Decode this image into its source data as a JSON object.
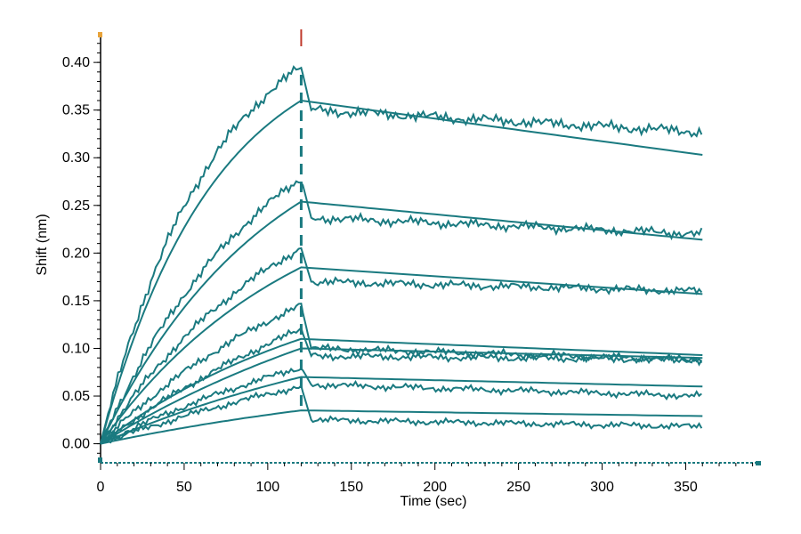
{
  "chart_data": {
    "type": "line",
    "title": "",
    "xlabel": "Time (sec)",
    "ylabel": "Shift (nm)",
    "xlim": [
      0,
      395
    ],
    "ylim": [
      -0.02,
      0.43
    ],
    "x_ticks": [
      0,
      50,
      100,
      150,
      200,
      250,
      300,
      350
    ],
    "y_ticks": [
      0.0,
      0.05,
      0.1,
      0.15,
      0.2,
      0.25,
      0.3,
      0.35,
      0.4
    ],
    "x_tick_labels": [
      "0",
      "50",
      "100",
      "150",
      "200",
      "250",
      "300",
      "350"
    ],
    "y_tick_labels": [
      "0.00",
      "0.05",
      "0.10",
      "0.15",
      "0.20",
      "0.25",
      "0.30",
      "0.35",
      "0.40"
    ],
    "grid": false,
    "legend": "none",
    "line_color": "#1a7a80",
    "marker_color": "#c0392b",
    "association_end_sec": 120,
    "x_end_sec": 360,
    "series": [
      {
        "fit_peak": 0.36,
        "fit_end": 0.303,
        "data_peak": 0.395,
        "data_drop": 0.35,
        "data_end": 0.327,
        "shape": 0.04
      },
      {
        "fit_peak": 0.254,
        "fit_end": 0.214,
        "data_peak": 0.278,
        "data_drop": 0.237,
        "data_end": 0.22,
        "shape": 0.022
      },
      {
        "fit_peak": 0.185,
        "fit_end": 0.157,
        "data_peak": 0.205,
        "data_drop": 0.17,
        "data_end": 0.16,
        "shape": 0.017
      },
      {
        "fit_peak": 0.11,
        "fit_end": 0.093,
        "data_peak": 0.145,
        "data_drop": 0.1,
        "data_end": 0.088,
        "shape": 0.011
      },
      {
        "fit_peak": 0.1,
        "fit_end": 0.09,
        "data_peak": 0.12,
        "data_drop": 0.092,
        "data_end": 0.088,
        "shape": 0.003
      },
      {
        "fit_peak": 0.07,
        "fit_end": 0.06,
        "data_peak": 0.08,
        "data_drop": 0.062,
        "data_end": 0.05,
        "shape": 0.003
      },
      {
        "fit_peak": 0.035,
        "fit_end": 0.029,
        "data_peak": 0.06,
        "data_drop": 0.025,
        "data_end": 0.018,
        "shape": 0.001
      }
    ]
  }
}
